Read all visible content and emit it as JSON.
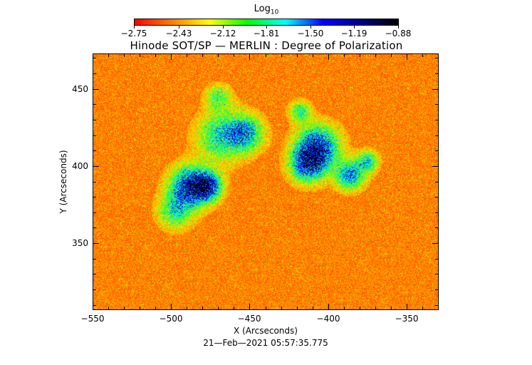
{
  "colorbar": {
    "title": "Log",
    "title_subscript": "10",
    "tick_labels": [
      "−2.75",
      "−2.43",
      "−2.12",
      "−1.81",
      "−1.50",
      "−1.19",
      "−0.88"
    ],
    "tick_values": [
      -2.75,
      -2.43,
      -2.12,
      -1.81,
      -1.5,
      -1.19,
      -0.88
    ],
    "range": [
      -2.75,
      -0.88
    ],
    "colors": [
      "#ff0000",
      "#ff7f00",
      "#ffff00",
      "#00ff00",
      "#00ffff",
      "#0000ff",
      "#00008b",
      "#000000"
    ]
  },
  "image": {
    "title": "Hinode SOT/SP — MERLIN : Degree of Polarization",
    "x_axis_label": "X (Arcseconds)",
    "y_axis_label": "Y (Arcseconds)",
    "x_tick_labels": [
      "−550",
      "−500",
      "−450",
      "−400",
      "−350"
    ],
    "x_tick_values": [
      -550,
      -500,
      -450,
      -400,
      -350
    ],
    "y_tick_labels": [
      "350",
      "400",
      "450"
    ],
    "y_tick_values": [
      350,
      400,
      450
    ],
    "x_range": [
      -550,
      -330
    ],
    "y_range": [
      307,
      473
    ],
    "timestamp": "21—Feb—2021 05:57:35.775",
    "background_color": "#f05a14"
  }
}
